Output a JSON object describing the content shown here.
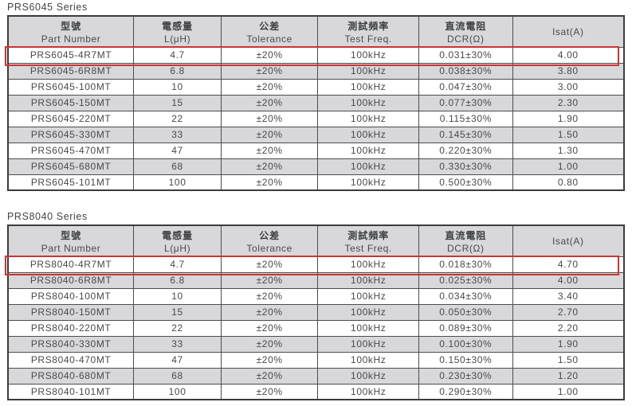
{
  "colors": {
    "background": "#ffffff",
    "header_stripe_bg": "#d8d8da",
    "table_border": "#3b3b3d",
    "grid_line": "#4c4c4e",
    "text": "#47494d",
    "highlight_red": "#cc3432"
  },
  "columns": [
    {
      "key": "part-number",
      "zh": "型號",
      "en": "Part Number"
    },
    {
      "key": "inductance",
      "zh": "電感量",
      "en": "L(μH)"
    },
    {
      "key": "tolerance",
      "zh": "公差",
      "en": "Tolerance"
    },
    {
      "key": "test-freq",
      "zh": "測試頻率",
      "en": "Test Freq."
    },
    {
      "key": "dcr",
      "zh": "直流電阻",
      "en": "DCR(Ω)"
    },
    {
      "key": "isat",
      "zh": "",
      "en": "Isat(A)"
    }
  ],
  "tables": [
    {
      "title": "PRS6045 Series",
      "highlighted_row": 0,
      "rows": [
        [
          "PRS6045-4R7MT",
          "4.7",
          "±20%",
          "100kHz",
          "0.031±30%",
          "4.00"
        ],
        [
          "PRS6045-6R8MT",
          "6.8",
          "±20%",
          "100kHz",
          "0.038±30%",
          "3.80"
        ],
        [
          "PRS6045-100MT",
          "10",
          "±20%",
          "100kHz",
          "0.047±30%",
          "3.00"
        ],
        [
          "PRS6045-150MT",
          "15",
          "±20%",
          "100kHz",
          "0.077±30%",
          "2.30"
        ],
        [
          "PRS6045-220MT",
          "22",
          "±20%",
          "100kHz",
          "0.115±30%",
          "1.90"
        ],
        [
          "PRS6045-330MT",
          "33",
          "±20%",
          "100kHz",
          "0.145±30%",
          "1.50"
        ],
        [
          "PRS6045-470MT",
          "47",
          "±20%",
          "100kHz",
          "0.220±30%",
          "1.30"
        ],
        [
          "PRS6045-680MT",
          "68",
          "±20%",
          "100kHz",
          "0.330±30%",
          "1.00"
        ],
        [
          "PRS6045-101MT",
          "100",
          "±20%",
          "100kHz",
          "0.500±30%",
          "0.80"
        ]
      ]
    },
    {
      "title": "PRS8040 Series",
      "highlighted_row": 0,
      "rows": [
        [
          "PRS8040-4R7MT",
          "4.7",
          "±20%",
          "100kHz",
          "0.018±30%",
          "4.70"
        ],
        [
          "PRS8040-6R8MT",
          "6.8",
          "±20%",
          "100kHz",
          "0.025±30%",
          "4.00"
        ],
        [
          "PRS8040-100MT",
          "10",
          "±20%",
          "100kHz",
          "0.034±30%",
          "3.40"
        ],
        [
          "PRS8040-150MT",
          "15",
          "±20%",
          "100kHz",
          "0.050±30%",
          "2.70"
        ],
        [
          "PRS8040-220MT",
          "22",
          "±20%",
          "100kHz",
          "0.089±30%",
          "2.20"
        ],
        [
          "PRS8040-330MT",
          "33",
          "±20%",
          "100kHz",
          "0.100±30%",
          "1.90"
        ],
        [
          "PRS8040-470MT",
          "47",
          "±20%",
          "100kHz",
          "0.150±30%",
          "1.50"
        ],
        [
          "PRS8040-680MT",
          "68",
          "±20%",
          "100kHz",
          "0.230±30%",
          "1.20"
        ],
        [
          "PRS8040-101MT",
          "100",
          "±20%",
          "100kHz",
          "0.290±30%",
          "1.00"
        ]
      ]
    }
  ]
}
